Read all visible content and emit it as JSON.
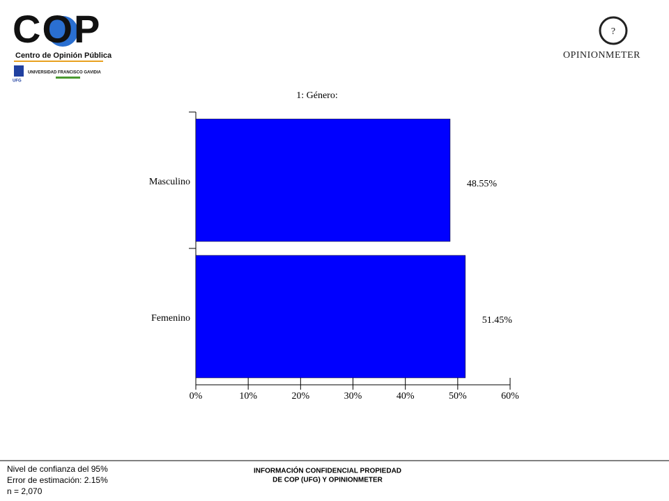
{
  "header": {
    "cop_logo": "COP",
    "cop_name": "Centro de Opinión Pública",
    "university": "UNIVERSIDAD FRANCISCO GAVIDIA",
    "university_short": "UFG",
    "om_icon": "?",
    "om_logo": "OPINIONMETER"
  },
  "chart_data": {
    "type": "hbar",
    "title": "1: Género:",
    "categories": [
      "Masculino",
      "Femenino"
    ],
    "values": [
      48.55,
      51.45
    ],
    "value_labels": [
      "48.55%",
      "51.45%"
    ],
    "color": "#0000ff",
    "xlim": [
      0,
      60
    ],
    "xticks": [
      {
        "value": 0,
        "label": "0%"
      },
      {
        "value": 10,
        "label": "10%"
      },
      {
        "value": 20,
        "label": "20%"
      },
      {
        "value": 30,
        "label": "30%"
      },
      {
        "value": 40,
        "label": "40%"
      },
      {
        "value": 50,
        "label": "50%"
      },
      {
        "value": 60,
        "label": "60%"
      }
    ]
  },
  "footer": {
    "left": [
      "Nivel de confianza del 95%",
      "Error de estimación: 2.15%",
      "n = 2,070"
    ],
    "center": [
      "INFORMACIÓN CONFIDENCIAL PROPIEDAD",
      "DE COP (UFG) Y OPINIONMETER"
    ]
  }
}
